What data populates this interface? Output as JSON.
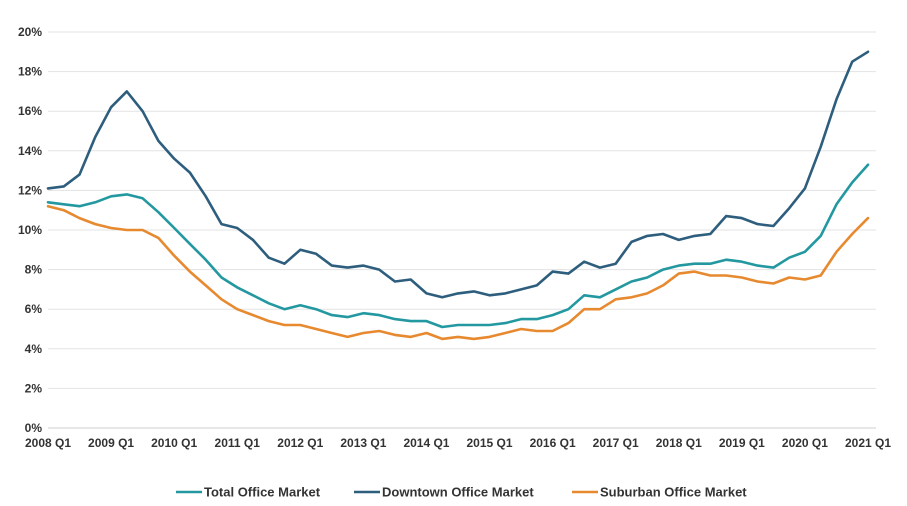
{
  "chart_data": {
    "type": "line",
    "title": "",
    "xlabel": "",
    "ylabel": "",
    "ylim": [
      0,
      20
    ],
    "y_ticks": [
      0,
      2,
      4,
      6,
      8,
      10,
      12,
      14,
      16,
      18,
      20
    ],
    "y_tick_labels": [
      "0%",
      "2%",
      "4%",
      "6%",
      "8%",
      "10%",
      "12%",
      "14%",
      "16%",
      "18%",
      "20%"
    ],
    "x_start": "2008 Q1",
    "x_end": "2021 Q1",
    "x_tick_labels": [
      "2008 Q1",
      "2009 Q1",
      "2010 Q1",
      "2011 Q1",
      "2012 Q1",
      "2013 Q1",
      "2014 Q1",
      "2015 Q1",
      "2016 Q1",
      "2017 Q1",
      "2018 Q1",
      "2019 Q1",
      "2020 Q1",
      "2021 Q1"
    ],
    "grid": true,
    "legend_position": "bottom",
    "series": [
      {
        "name": "Total Office Market",
        "color": "#2398a0",
        "values": [
          11.4,
          11.3,
          11.2,
          11.4,
          11.7,
          11.8,
          11.6,
          10.9,
          10.1,
          9.3,
          8.5,
          7.6,
          7.1,
          6.7,
          6.3,
          6.0,
          6.2,
          6.0,
          5.7,
          5.6,
          5.8,
          5.7,
          5.5,
          5.4,
          5.4,
          5.1,
          5.2,
          5.2,
          5.2,
          5.3,
          5.5,
          5.5,
          5.7,
          6.0,
          6.7,
          6.6,
          7.0,
          7.4,
          7.6,
          8.0,
          8.2,
          8.3,
          8.3,
          8.5,
          8.4,
          8.2,
          8.1,
          8.6,
          8.9,
          9.7,
          11.3,
          12.4,
          13.3
        ]
      },
      {
        "name": "Downtown Office Market",
        "color": "#2e5e7e",
        "values": [
          12.1,
          12.2,
          12.8,
          14.7,
          16.2,
          17.0,
          16.0,
          14.5,
          13.6,
          12.9,
          11.7,
          10.3,
          10.1,
          9.5,
          8.6,
          8.3,
          9.0,
          8.8,
          8.2,
          8.1,
          8.2,
          8.0,
          7.4,
          7.5,
          6.8,
          6.6,
          6.8,
          6.9,
          6.7,
          6.8,
          7.0,
          7.2,
          7.9,
          7.8,
          8.4,
          8.1,
          8.3,
          9.4,
          9.7,
          9.8,
          9.5,
          9.7,
          9.8,
          10.7,
          10.6,
          10.3,
          10.2,
          11.1,
          12.1,
          14.2,
          16.6,
          18.5,
          19.0
        ]
      },
      {
        "name": "Suburban Office Market",
        "color": "#e7892f",
        "values": [
          11.2,
          11.0,
          10.6,
          10.3,
          10.1,
          10.0,
          10.0,
          9.6,
          8.7,
          7.9,
          7.2,
          6.5,
          6.0,
          5.7,
          5.4,
          5.2,
          5.2,
          5.0,
          4.8,
          4.6,
          4.8,
          4.9,
          4.7,
          4.6,
          4.8,
          4.5,
          4.6,
          4.5,
          4.6,
          4.8,
          5.0,
          4.9,
          4.9,
          5.3,
          6.0,
          6.0,
          6.5,
          6.6,
          6.8,
          7.2,
          7.8,
          7.9,
          7.7,
          7.7,
          7.6,
          7.4,
          7.3,
          7.6,
          7.5,
          7.7,
          8.9,
          9.8,
          10.6
        ]
      }
    ]
  }
}
